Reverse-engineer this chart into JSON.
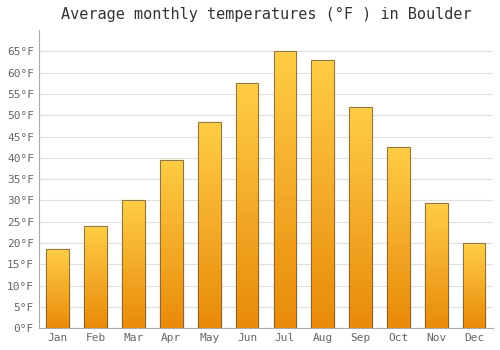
{
  "title": "Average monthly temperatures (°F ) in Boulder",
  "months": [
    "Jan",
    "Feb",
    "Mar",
    "Apr",
    "May",
    "Jun",
    "Jul",
    "Aug",
    "Sep",
    "Oct",
    "Nov",
    "Dec"
  ],
  "values": [
    18.5,
    24,
    30,
    39.5,
    48.5,
    57.5,
    65,
    63,
    52,
    42.5,
    29.5,
    20
  ],
  "bar_color_light": "#FFCC44",
  "bar_color_dark": "#E8890A",
  "bar_edge_color": "#555555",
  "ylim": [
    0,
    70
  ],
  "yticks": [
    0,
    5,
    10,
    15,
    20,
    25,
    30,
    35,
    40,
    45,
    50,
    55,
    60,
    65
  ],
  "background_color": "#ffffff",
  "plot_bg_color": "#ffffff",
  "grid_color": "#e0e0e0",
  "title_fontsize": 11,
  "tick_fontsize": 8,
  "bar_width": 0.6
}
